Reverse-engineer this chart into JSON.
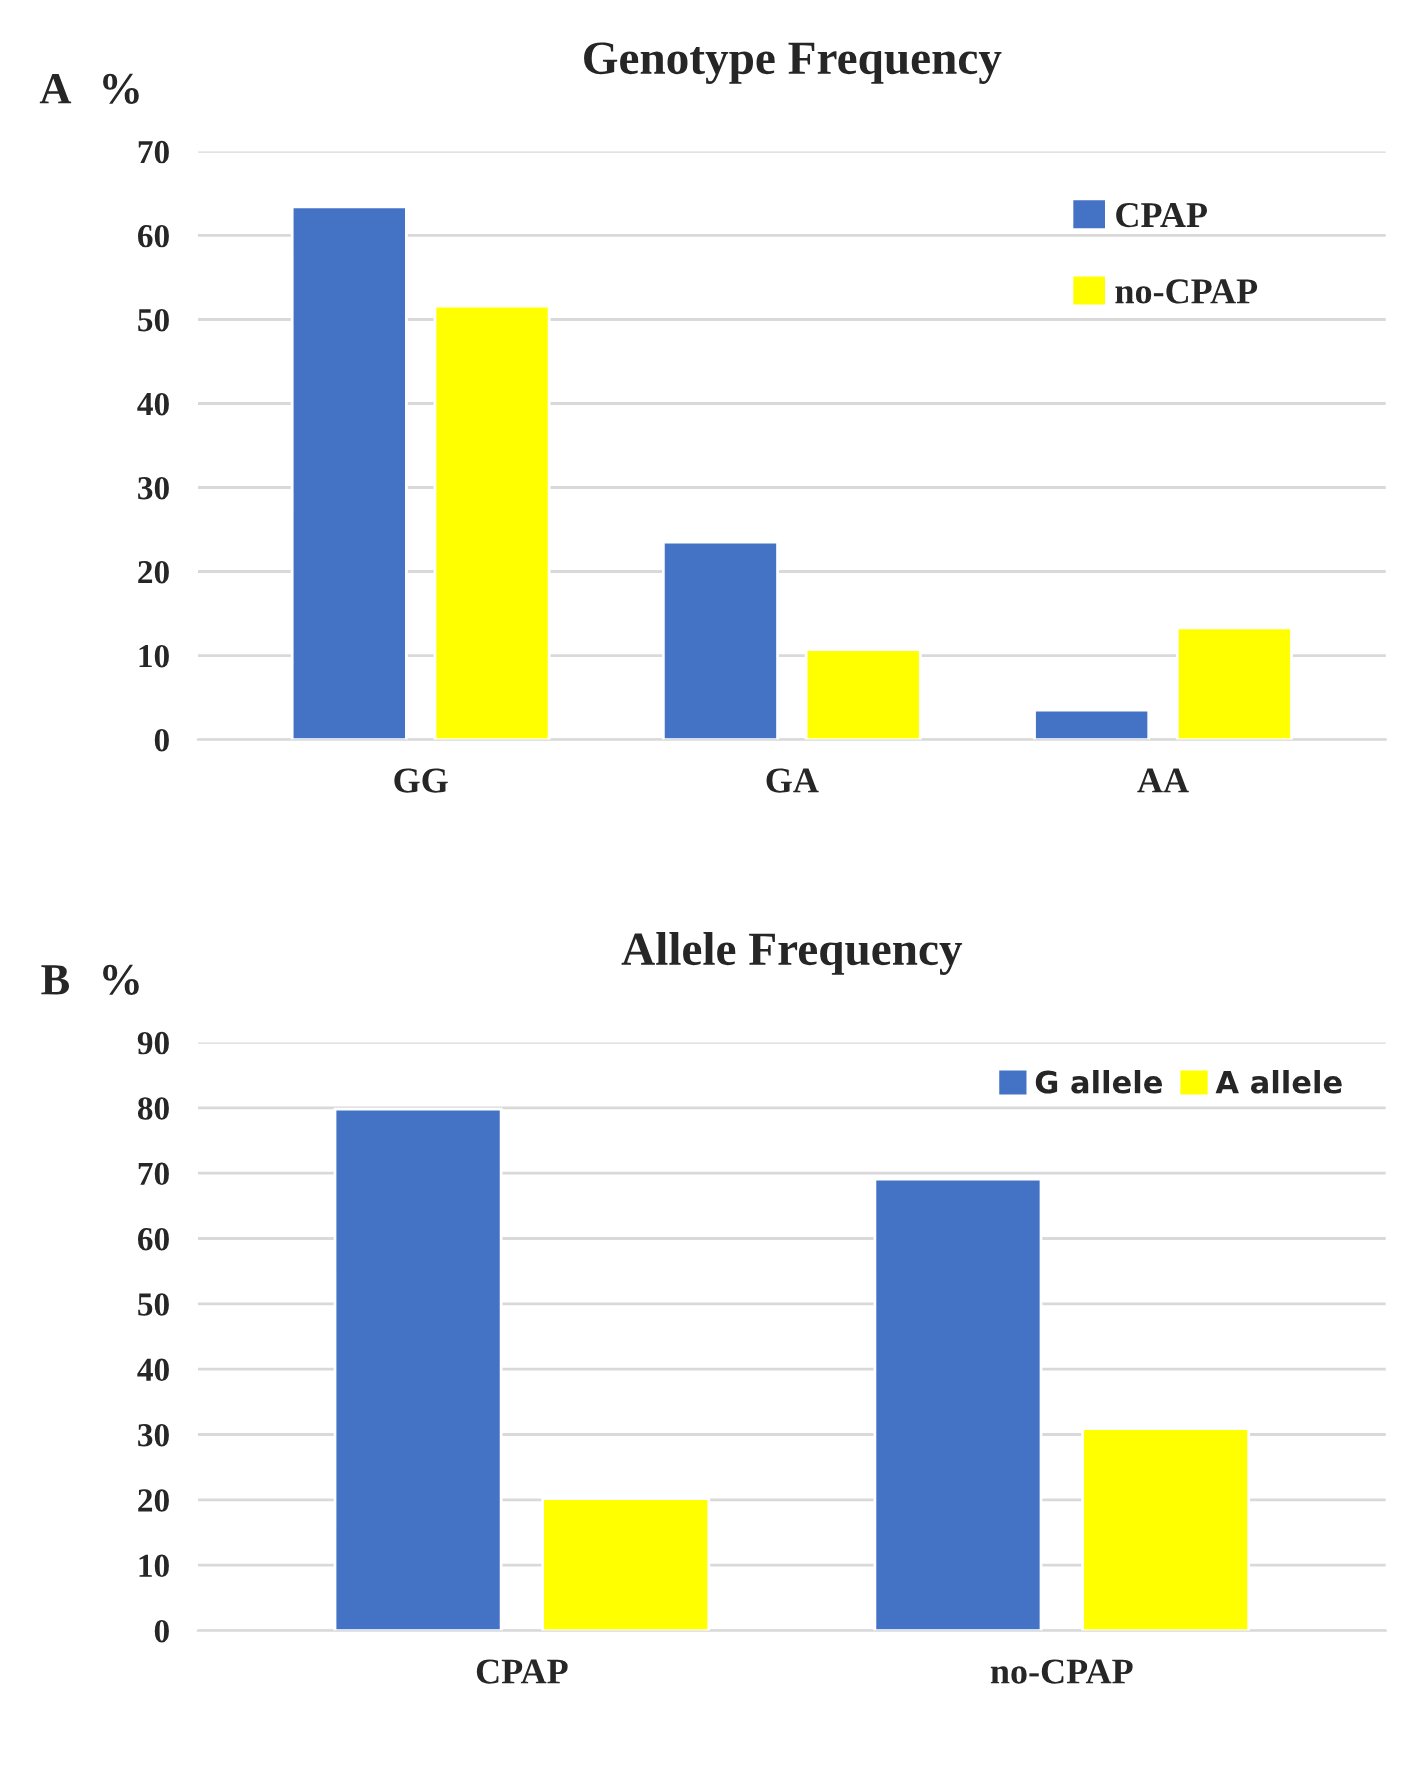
{
  "chart_data": [
    {
      "type": "bar",
      "title": "Genotype Frequency",
      "ylabel": "%",
      "annotations": [
        "A"
      ],
      "categories": [
        "GG",
        "GA",
        "AA"
      ],
      "series": [
        {
          "name": "CPAP",
          "color": "#4472c4",
          "values": [
            63.4,
            23.5,
            3.5
          ]
        },
        {
          "name": "no-CPAP",
          "color": "#ffff00",
          "values": [
            51.6,
            10.7,
            13.3
          ]
        }
      ],
      "ylim": [
        0,
        70
      ],
      "yticks": [
        0,
        10,
        20,
        30,
        40,
        50,
        60,
        70
      ],
      "grid": "y",
      "legend": "top right"
    },
    {
      "type": "bar",
      "title": "Allele Frequency",
      "ylabel": "%",
      "annotations": [
        "B"
      ],
      "categories": [
        "CPAP",
        "no-CPAP"
      ],
      "series": [
        {
          "name": "G allele",
          "color": "#4472c4",
          "values": [
            79.8,
            69.1
          ]
        },
        {
          "name": "A allele",
          "color": "#ffff00",
          "values": [
            20.2,
            30.9
          ]
        }
      ],
      "ylim": [
        0,
        90
      ],
      "yticks": [
        0,
        10,
        20,
        30,
        40,
        50,
        60,
        70,
        80,
        90
      ],
      "grid": "y",
      "legend": "top"
    }
  ]
}
